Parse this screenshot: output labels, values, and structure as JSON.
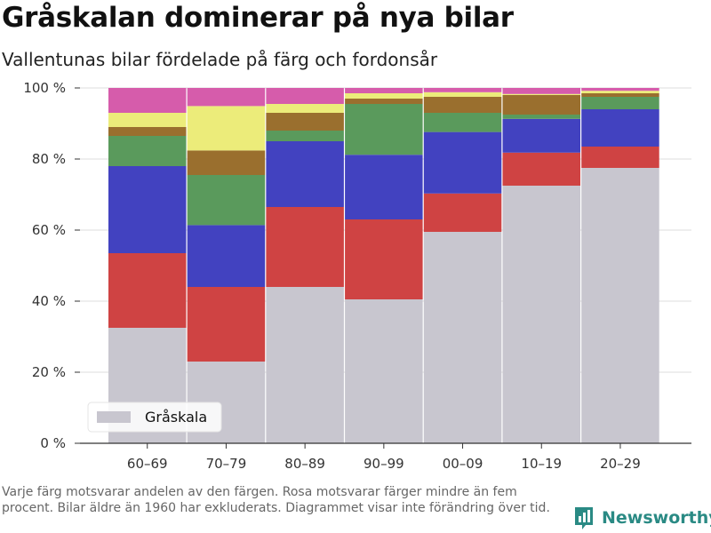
{
  "header": {
    "title": "Gråskalan dominerar på nya bilar",
    "subtitle": "Vallentunas bilar fördelade på färg och fordonsår"
  },
  "footer": {
    "note": "Varje färg motsvarar andelen av den färgen. Rosa motsvarar färger mindre än fem procent. Bilar äldre än 1960 har exkluderats. Diagrammet visar inte förändring över tid.",
    "brand": "Newsworthy",
    "brand_icon": "newsworthy-logo-icon"
  },
  "chart_data": {
    "type": "bar",
    "stacked": true,
    "title": "Gråskalan dominerar på nya bilar",
    "subtitle": "Vallentunas bilar fördelade på färg och fordonsår",
    "xlabel": "",
    "ylabel": "",
    "ylim": [
      0,
      100
    ],
    "yticks": [
      0,
      20,
      40,
      60,
      80,
      100
    ],
    "ytick_labels": [
      "0 %",
      "20 %",
      "40 %",
      "60 %",
      "80 %",
      "100 %"
    ],
    "categories": [
      "60–69",
      "70–79",
      "80–89",
      "90–99",
      "00–09",
      "10–19",
      "20–29"
    ],
    "grid": true,
    "legend_placement": "bottom-left",
    "series": [
      {
        "name": "Gråskala",
        "color": "#c8c6cf",
        "values": [
          32.5,
          23,
          44,
          40.5,
          59.5,
          72.5,
          77.5
        ]
      },
      {
        "color": "#cf4343",
        "values": [
          21,
          21,
          22.5,
          22.5,
          10.8,
          9.3,
          6
        ]
      },
      {
        "color": "#4242c0",
        "values": [
          24.5,
          17.4,
          18.5,
          18.2,
          17.3,
          9.5,
          10.5
        ]
      },
      {
        "color": "#5a9a5c",
        "values": [
          8.5,
          14.1,
          3,
          14.3,
          5.4,
          1.2,
          3.5
        ]
      },
      {
        "color": "#9a6f2e",
        "values": [
          2.5,
          6.9,
          5,
          1.5,
          4.5,
          5.5,
          1
        ]
      },
      {
        "color": "#ecec7a",
        "values": [
          4,
          12.5,
          2.5,
          1.5,
          1.3,
          0.3,
          0.7
        ]
      },
      {
        "color": "#d65cab",
        "values": [
          7,
          5.1,
          4.5,
          1.5,
          1.2,
          1.7,
          0.8
        ]
      }
    ]
  }
}
